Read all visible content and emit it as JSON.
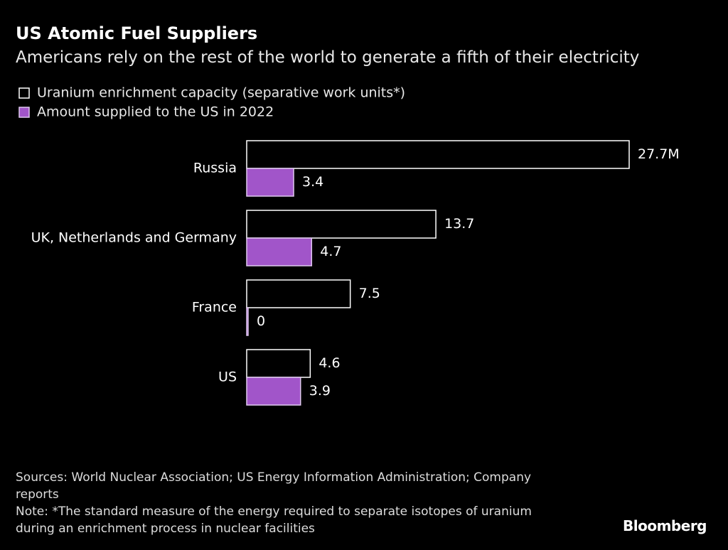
{
  "chart_data": {
    "type": "bar",
    "orientation": "horizontal",
    "title": "US Atomic Fuel Suppliers",
    "subtitle": "Americans rely on the rest of the world to generate a fifth of their electricity",
    "categories": [
      "Russia",
      "UK, Netherlands and Germany",
      "France",
      "US"
    ],
    "series": [
      {
        "name": "Uranium enrichment capacity (separative work units*)",
        "color": "#000000",
        "stroke": "#ffffff",
        "values": [
          27.7,
          13.7,
          7.5,
          4.6
        ],
        "value_labels": [
          "27.7M",
          "13.7",
          "7.5",
          "4.6"
        ]
      },
      {
        "name": "Amount supplied to the US in 2022",
        "color": "#a155c9",
        "stroke": "#e0c8f0",
        "values": [
          3.4,
          4.7,
          0,
          3.9
        ]
      }
    ],
    "source": "Sources: World Nuclear Association; US Energy Information Administration; Company reports",
    "note": "Note: *The standard measure of the energy required to separate isotopes of uranium during an enrichment process in nuclear facilities",
    "brand": "Bloomberg"
  }
}
